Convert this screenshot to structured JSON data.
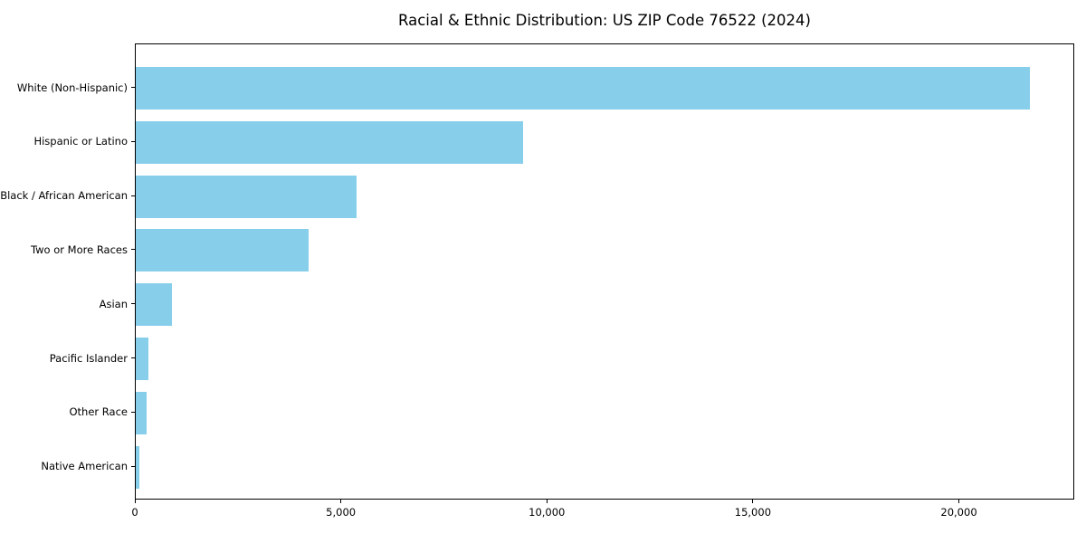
{
  "chart_data": {
    "type": "bar",
    "orientation": "horizontal",
    "title": "Racial & Ethnic Distribution: US ZIP Code 76522 (2024)",
    "categories": [
      "White (Non-Hispanic)",
      "Hispanic or Latino",
      "Black / African American",
      "Two or More Races",
      "Asian",
      "Pacific Islander",
      "Other Race",
      "Native American"
    ],
    "values": [
      21700,
      9400,
      5360,
      4200,
      880,
      300,
      265,
      80
    ],
    "xlabel": "",
    "ylabel": "",
    "xlim": [
      0,
      22800
    ],
    "xticks": [
      0,
      5000,
      10000,
      15000,
      20000
    ],
    "xtick_labels": [
      "0",
      "5,000",
      "10,000",
      "15,000",
      "20,000"
    ],
    "bar_color": "#87CEEB",
    "grid": false,
    "legend_position": "none",
    "background_color": "#ffffff"
  }
}
